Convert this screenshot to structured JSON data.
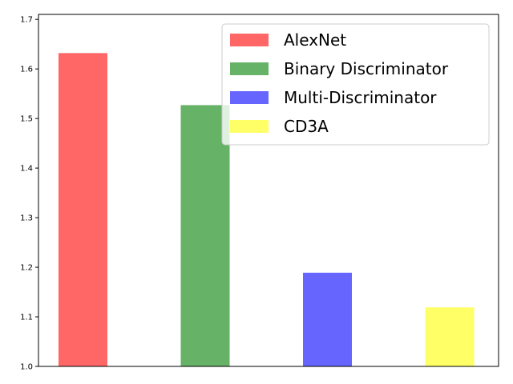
{
  "chart_data": {
    "type": "bar",
    "title": "",
    "xlabel": "",
    "ylabel": "",
    "categories": [
      "AlexNet",
      "Binary Discriminator",
      "Multi-Discriminator",
      "CD3A"
    ],
    "values": [
      1.632,
      1.527,
      1.189,
      1.119
    ],
    "colors": [
      "#ff6666",
      "#66b266",
      "#6666ff",
      "#ffff66"
    ],
    "ylim": [
      1.0,
      1.71
    ],
    "yticks": [
      1.0,
      1.1,
      1.2,
      1.3,
      1.4,
      1.5,
      1.6,
      1.7
    ],
    "ytick_labels": [
      "1.0",
      "1.1",
      "1.2",
      "1.3",
      "1.4",
      "1.5",
      "1.6",
      "1.7"
    ],
    "grid": false,
    "legend": {
      "position": "top-right",
      "entries": [
        "AlexNet",
        "Binary Discriminator",
        "Multi-Discriminator",
        "CD3A"
      ]
    }
  }
}
